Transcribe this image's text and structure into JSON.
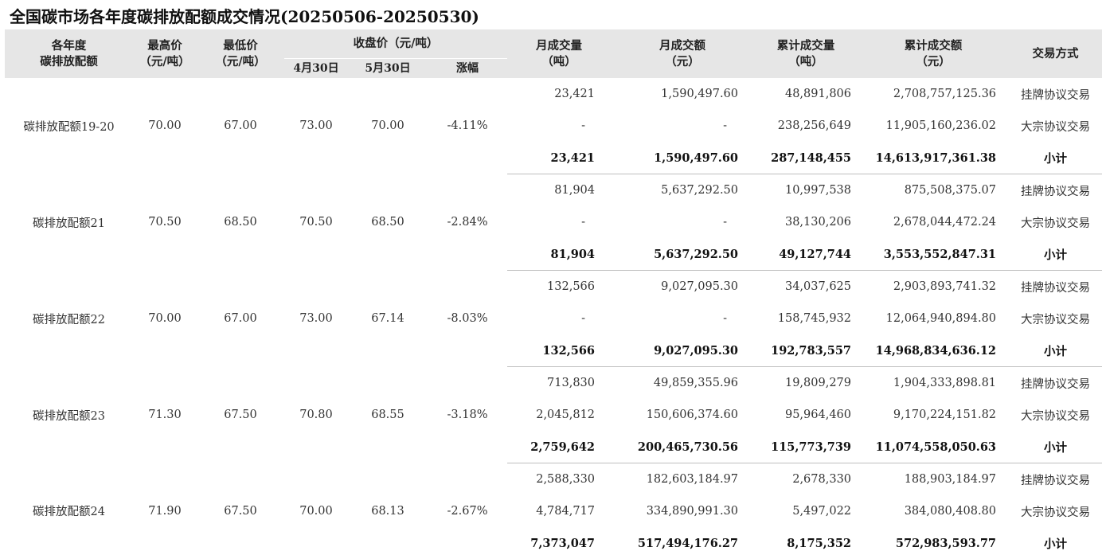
{
  "title": "全国碳市场各年度碳排放配额成交情况(20250506-20250530)",
  "headers": {
    "allowance_line1": "各年度",
    "allowance_line2": "碳排放配额",
    "high_line1": "最高价",
    "high_line2": "（元/吨）",
    "low_line1": "最低价",
    "low_line2": "（元/吨）",
    "close_group": "收盘价（元/吨）",
    "close_apr30": "4月30日",
    "close_may30": "5月30日",
    "change": "涨幅",
    "month_vol_line1": "月成交量",
    "month_vol_line2": "（吨）",
    "month_amt_line1": "月成交额",
    "month_amt_line2": "（元）",
    "cum_vol_line1": "累计成交量",
    "cum_vol_line2": "（吨）",
    "cum_amt_line1": "累计成交额",
    "cum_amt_line2": "（元）",
    "method": "交易方式"
  },
  "groups": [
    {
      "name": "碳排放配额19-20",
      "high": "70.00",
      "low": "67.00",
      "close_apr30": "73.00",
      "close_may30": "70.00",
      "change": "-4.11%",
      "rows": [
        {
          "month_vol": "23,421",
          "month_amt": "1,590,497.60",
          "cum_vol": "48,891,806",
          "cum_amt": "2,708,757,125.36",
          "method": "挂牌协议交易"
        },
        {
          "month_vol": "-",
          "month_amt": "-",
          "cum_vol": "238,256,649",
          "cum_amt": "11,905,160,236.02",
          "method": "大宗协议交易"
        },
        {
          "month_vol": "23,421",
          "month_amt": "1,590,497.60",
          "cum_vol": "287,148,455",
          "cum_amt": "14,613,917,361.38",
          "method": "小计"
        }
      ]
    },
    {
      "name": "碳排放配额21",
      "high": "70.50",
      "low": "68.50",
      "close_apr30": "70.50",
      "close_may30": "68.50",
      "change": "-2.84%",
      "rows": [
        {
          "month_vol": "81,904",
          "month_amt": "5,637,292.50",
          "cum_vol": "10,997,538",
          "cum_amt": "875,508,375.07",
          "method": "挂牌协议交易"
        },
        {
          "month_vol": "-",
          "month_amt": "-",
          "cum_vol": "38,130,206",
          "cum_amt": "2,678,044,472.24",
          "method": "大宗协议交易"
        },
        {
          "month_vol": "81,904",
          "month_amt": "5,637,292.50",
          "cum_vol": "49,127,744",
          "cum_amt": "3,553,552,847.31",
          "method": "小计"
        }
      ]
    },
    {
      "name": "碳排放配额22",
      "high": "70.00",
      "low": "67.00",
      "close_apr30": "73.00",
      "close_may30": "67.14",
      "change": "-8.03%",
      "rows": [
        {
          "month_vol": "132,566",
          "month_amt": "9,027,095.30",
          "cum_vol": "34,037,625",
          "cum_amt": "2,903,893,741.32",
          "method": "挂牌协议交易"
        },
        {
          "month_vol": "-",
          "month_amt": "-",
          "cum_vol": "158,745,932",
          "cum_amt": "12,064,940,894.80",
          "method": "大宗协议交易"
        },
        {
          "month_vol": "132,566",
          "month_amt": "9,027,095.30",
          "cum_vol": "192,783,557",
          "cum_amt": "14,968,834,636.12",
          "method": "小计"
        }
      ]
    },
    {
      "name": "碳排放配额23",
      "high": "71.30",
      "low": "67.50",
      "close_apr30": "70.80",
      "close_may30": "68.55",
      "change": "-3.18%",
      "rows": [
        {
          "month_vol": "713,830",
          "month_amt": "49,859,355.96",
          "cum_vol": "19,809,279",
          "cum_amt": "1,904,333,898.81",
          "method": "挂牌协议交易"
        },
        {
          "month_vol": "2,045,812",
          "month_amt": "150,606,374.60",
          "cum_vol": "95,964,460",
          "cum_amt": "9,170,224,151.82",
          "method": "大宗协议交易"
        },
        {
          "month_vol": "2,759,642",
          "month_amt": "200,465,730.56",
          "cum_vol": "115,773,739",
          "cum_amt": "11,074,558,050.63",
          "method": "小计"
        }
      ]
    },
    {
      "name": "碳排放配额24",
      "high": "71.90",
      "low": "67.50",
      "close_apr30": "70.00",
      "close_may30": "68.13",
      "change": "-2.67%",
      "rows": [
        {
          "month_vol": "2,588,330",
          "month_amt": "182,603,184.97",
          "cum_vol": "2,678,330",
          "cum_amt": "188,903,184.97",
          "method": "挂牌协议交易"
        },
        {
          "month_vol": "4,784,717",
          "month_amt": "334,890,991.30",
          "cum_vol": "5,497,022",
          "cum_amt": "384,080,408.80",
          "method": "大宗协议交易"
        },
        {
          "month_vol": "7,373,047",
          "month_amt": "517,494,176.27",
          "cum_vol": "8,175,352",
          "cum_amt": "572,983,593.77",
          "method": "小计"
        }
      ]
    }
  ]
}
